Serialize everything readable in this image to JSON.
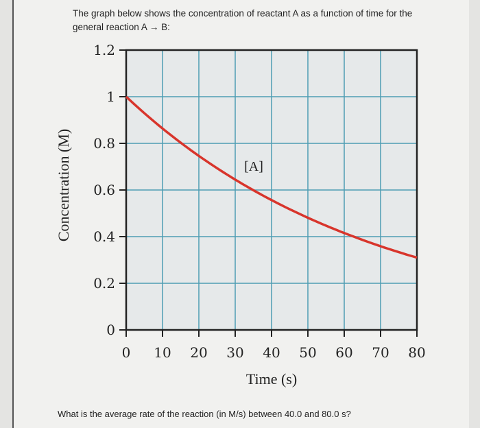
{
  "question": {
    "intro": "The graph below shows the concentration of reactant A as a function of time for the general reaction A → B:",
    "prompt": "What is the average rate of the reaction (in M/s) between 40.0 and 80.0 s?"
  },
  "chart_data": {
    "type": "line",
    "xlabel": "Time (s)",
    "ylabel": "Concentration (M)",
    "xlim": [
      0,
      80
    ],
    "ylim": [
      0,
      1.2
    ],
    "x_ticks": [
      "0",
      "10",
      "20",
      "30",
      "40",
      "50",
      "60",
      "70",
      "80"
    ],
    "y_ticks": [
      "0",
      "0.2",
      "0.4",
      "0.6",
      "0.8",
      "1",
      "1.2"
    ],
    "grid": true,
    "series": [
      {
        "name": "[A]",
        "color": "#d8352c",
        "x": [
          0,
          10,
          20,
          30,
          40,
          50,
          60,
          70,
          80
        ],
        "y": [
          1.0,
          0.87,
          0.75,
          0.645,
          0.555,
          0.48,
          0.414,
          0.357,
          0.31
        ]
      }
    ],
    "annotation": "[A]",
    "colors": {
      "grid": "#4f9db3",
      "axis": "#222222"
    }
  }
}
